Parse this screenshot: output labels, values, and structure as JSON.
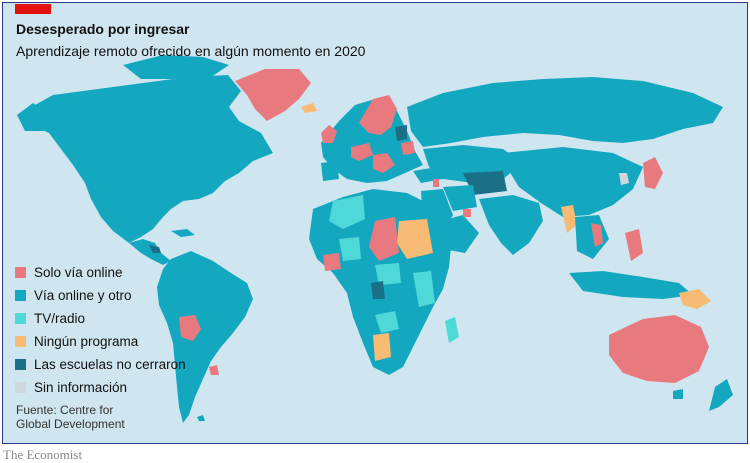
{
  "header": {
    "title": "Desesperado por ingresar",
    "subtitle": "Aprendizaje remoto ofrecido en algún momento en 2020"
  },
  "legend": {
    "items": [
      {
        "label": "Solo vía online",
        "color": "#e87a7f"
      },
      {
        "label": "Vía online y otro",
        "color": "#14a8c0"
      },
      {
        "label": "TV/radio",
        "color": "#4fd8d8"
      },
      {
        "label": "Ningún programa",
        "color": "#f7bb73"
      },
      {
        "label": "Las escuelas no cerraron",
        "color": "#1b6f86"
      },
      {
        "label": "Sin información",
        "color": "#cfd9dd"
      }
    ]
  },
  "source": {
    "line1": "Fuente: Centre for",
    "line2": "Global Development"
  },
  "brand": "The Economist",
  "colors": {
    "ocean": "#cfe5ef",
    "accent_tag": "#e3120b",
    "frame_border": "#2a3a8c"
  }
}
